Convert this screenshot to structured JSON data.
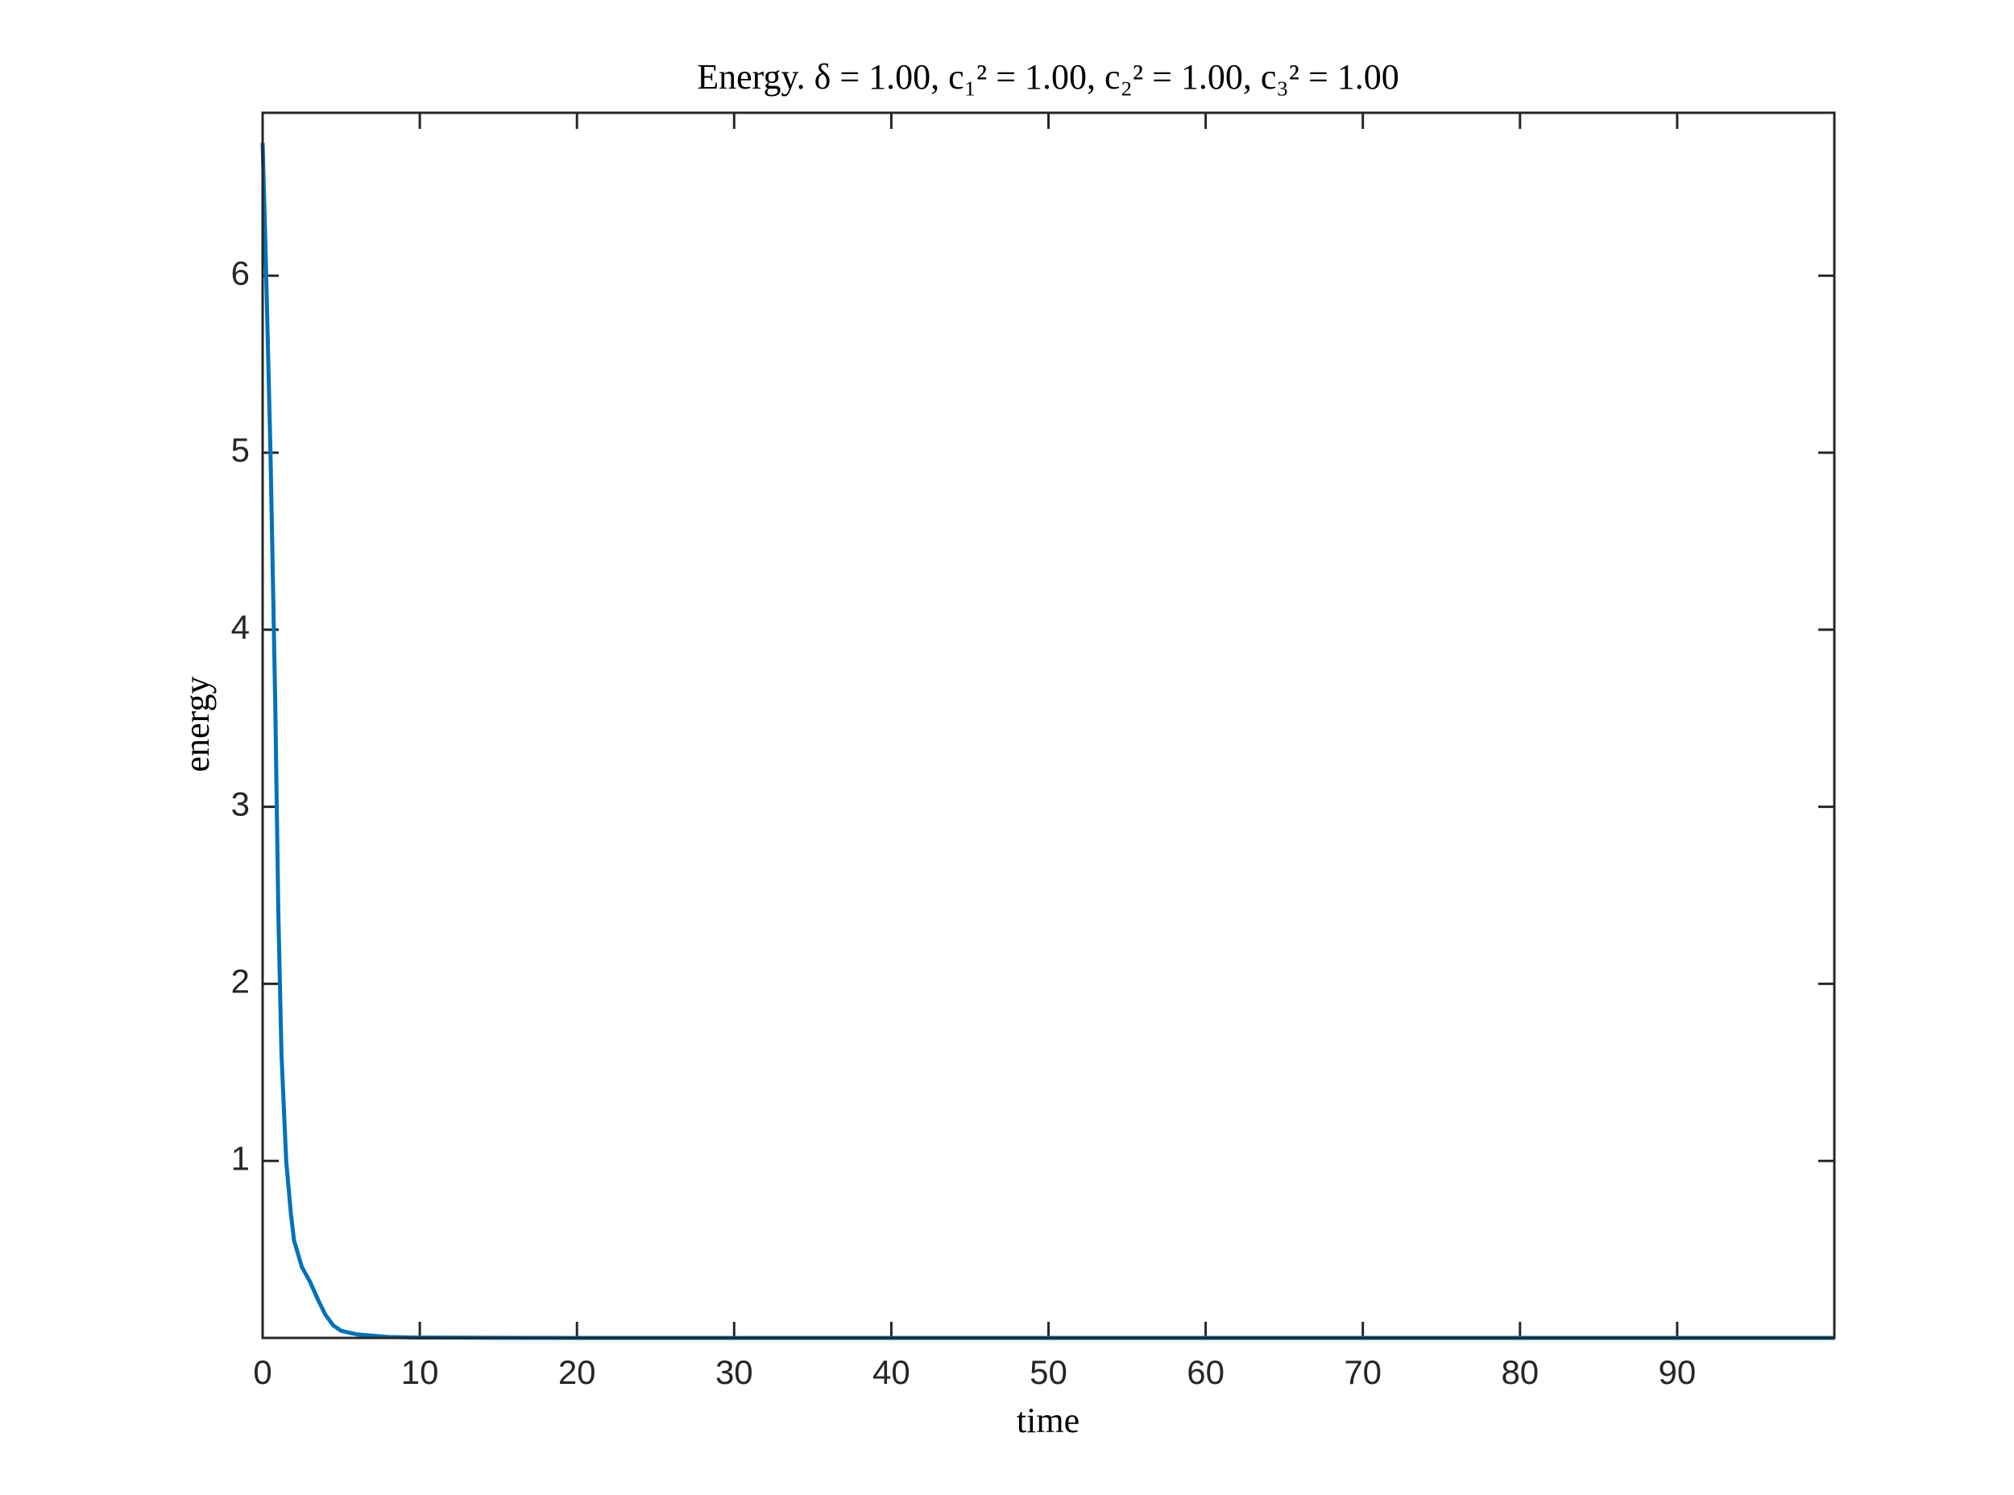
{
  "chart_data": {
    "type": "line",
    "title": "Energy. δ = 1.00, c₁² = 1.00, c₂² = 1.00, c₃² = 1.00",
    "xlabel": "time",
    "ylabel": "energy",
    "x": [
      0,
      0.2,
      0.5,
      0.8,
      1.0,
      1.2,
      1.5,
      1.8,
      2.0,
      2.5,
      3.0,
      3.5,
      4.0,
      4.5,
      5,
      6,
      8,
      10,
      20,
      100
    ],
    "series": [
      {
        "name": "energy",
        "color": "#0072bd",
        "values": [
          6.75,
          6.1,
          5.0,
          3.6,
          2.4,
          1.6,
          1.0,
          0.7,
          0.55,
          0.4,
          0.32,
          0.22,
          0.13,
          0.07,
          0.04,
          0.02,
          0.005,
          0.002,
          0,
          0
        ]
      }
    ],
    "xlim": [
      0,
      100
    ],
    "xticks": [
      0,
      10,
      20,
      30,
      40,
      50,
      60,
      70,
      80,
      90
    ],
    "ylim": [
      0,
      6.92
    ],
    "yticks": [
      1,
      2,
      3,
      4,
      5,
      6
    ],
    "grid": false
  }
}
